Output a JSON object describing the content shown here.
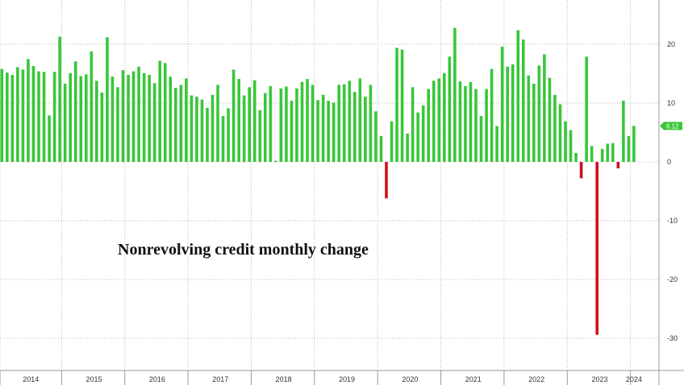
{
  "chart_data": {
    "type": "bar",
    "annotation": "Nonrevolving credit monthly change",
    "ylim": [
      -35,
      27
    ],
    "yticks": [
      20,
      10,
      0,
      -10,
      -20,
      -30
    ],
    "ytick_labels": [
      "20",
      "10",
      "0",
      "-10",
      "-20",
      "-30"
    ],
    "year_labels": [
      "2014",
      "2015",
      "2016",
      "2017",
      "2018",
      "2019",
      "2020",
      "2021",
      "2022",
      "2023",
      "2024"
    ],
    "last_value_label": "6.12",
    "grid": "dotted",
    "colors": {
      "positive": "#39c63a",
      "negative": "#d0101a",
      "badge": "#39c63a",
      "grid": "#b8b8b8"
    },
    "series": [
      {
        "values": [
          15.8,
          15.2,
          14.8,
          16.1,
          15.7,
          17.5,
          16.3,
          15.4,
          15.3,
          7.9,
          15.3,
          21.3,
          13.3,
          15.1,
          17.1,
          14.6,
          14.9,
          18.8,
          13.8,
          11.8,
          21.2,
          14.5,
          12.7,
          15.6,
          14.8,
          15.4,
          16.2,
          15.1,
          14.8,
          13.4,
          17.2,
          16.8,
          14.5,
          12.6,
          13.1,
          14.2,
          11.3,
          11.1,
          10.6,
          9.2,
          11.4,
          13.1,
          7.8,
          9.1,
          15.7,
          14.1,
          11.3,
          12.7,
          13.9,
          8.8,
          11.7,
          12.9,
          0.2,
          12.5,
          12.8,
          10.4,
          12.5,
          13.6,
          14.1,
          13.1,
          10.5,
          11.4,
          10.4,
          10.1,
          13.1,
          13.2,
          13.8,
          11.9,
          14.2,
          11.1,
          13.1,
          8.6,
          4.4,
          -6.2,
          6.9,
          19.4,
          19.1,
          4.8,
          12.7,
          8.4,
          9.6,
          12.4,
          13.8,
          14.2,
          15.1,
          17.9,
          22.8,
          13.7,
          12.9,
          13.6,
          12.4,
          7.8,
          12.4,
          15.8,
          6.1,
          19.6,
          16.2,
          16.6,
          22.4,
          20.8,
          14.7,
          13.3,
          16.4,
          18.3,
          14.3,
          11.4,
          9.8,
          6.9,
          5.4,
          1.5,
          -2.8,
          17.9,
          2.7,
          -29.4,
          2.2,
          3.1,
          3.2,
          -1.1,
          10.4,
          4.4,
          6.12
        ]
      }
    ]
  }
}
